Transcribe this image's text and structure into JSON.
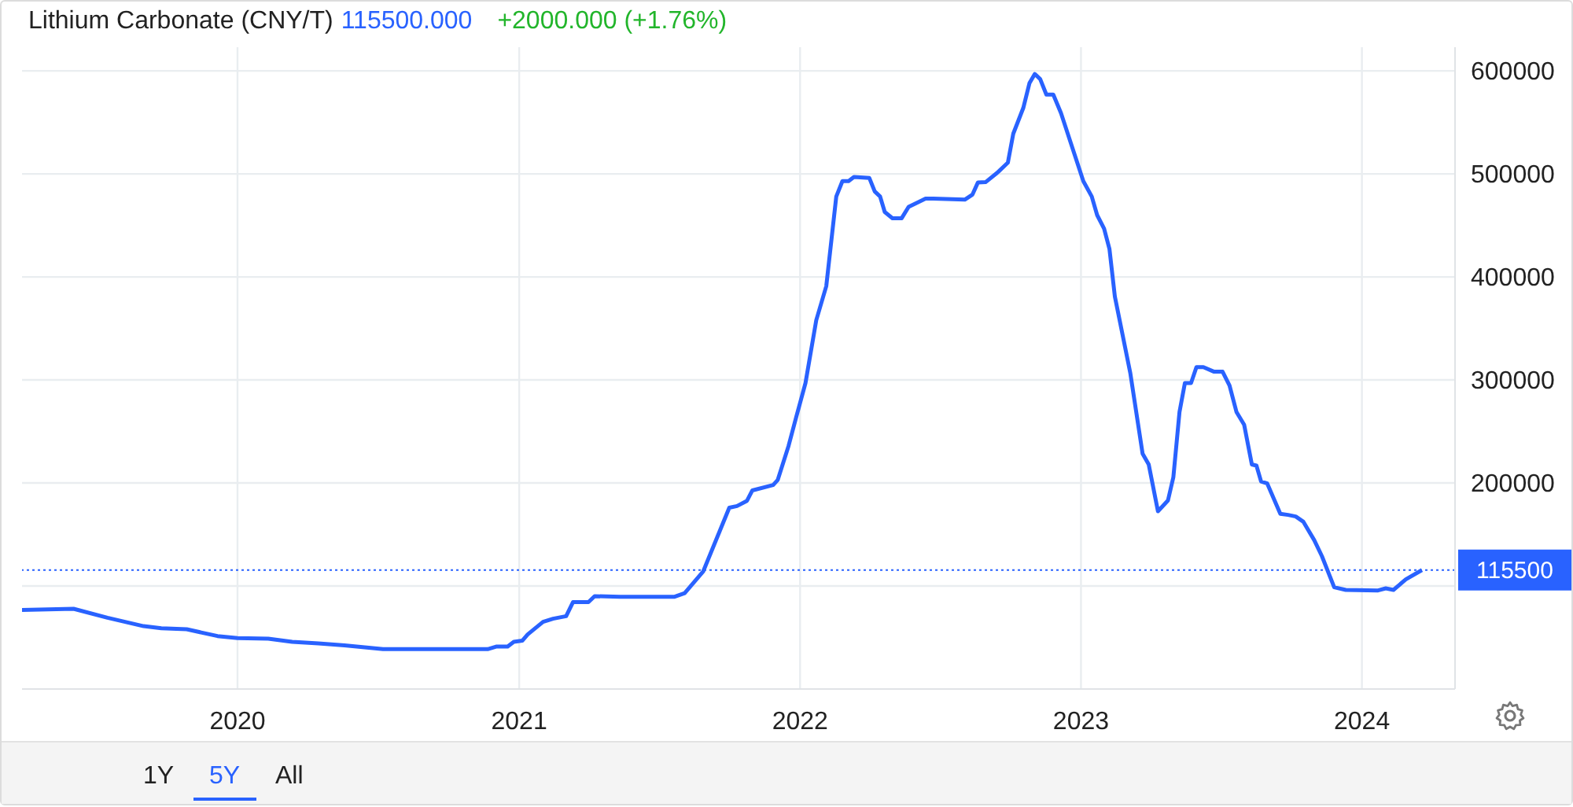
{
  "chart_data": {
    "type": "line",
    "title": "Lithium Carbonate (CNY/T)",
    "annotations": [
      "115500.000",
      "+2000.000 (+1.76%)",
      "1Y",
      "5Y",
      "All"
    ],
    "x": [
      "2019-03-27",
      "2019-06-02",
      "2019-07-16",
      "2019-09-01",
      "2019-09-24",
      "2019-10-27",
      "2019-12-06",
      "2020-01-01",
      "2020-02-10",
      "2020-03-12",
      "2020-04-15",
      "2020-05-19",
      "2020-07-08",
      "2020-11-21",
      "2020-12-02",
      "2020-12-17",
      "2020-12-25",
      "2021-01-05",
      "2021-01-12",
      "2021-02-01",
      "2021-02-14",
      "2021-03-03",
      "2021-03-12",
      "2021-04-01",
      "2021-04-09",
      "2021-05-12",
      "2021-07-22",
      "2021-08-04",
      "2021-08-28",
      "2021-10-01",
      "2021-10-11",
      "2021-10-24",
      "2021-10-31",
      "2021-11-27",
      "2021-12-03",
      "2021-12-17",
      "2021-12-27",
      "2022-01-08",
      "2022-01-22",
      "2022-02-04",
      "2022-02-17",
      "2022-02-25",
      "2022-03-05",
      "2022-03-12",
      "2022-04-01",
      "2022-04-08",
      "2022-04-15",
      "2022-04-21",
      "2022-05-01",
      "2022-05-13",
      "2022-05-22",
      "2022-06-13",
      "2022-06-23",
      "2022-08-03",
      "2022-08-13",
      "2022-08-20",
      "2022-08-30",
      "2022-09-14",
      "2022-09-28",
      "2022-10-05",
      "2022-10-18",
      "2022-10-26",
      "2022-11-02",
      "2022-11-09",
      "2022-11-17",
      "2022-11-26",
      "2022-12-06",
      "2023-01-04",
      "2023-01-15",
      "2023-01-22",
      "2023-01-31",
      "2023-02-07",
      "2023-02-14",
      "2023-03-06",
      "2023-03-22",
      "2023-03-30",
      "2023-04-11",
      "2023-04-24",
      "2023-05-01",
      "2023-05-09",
      "2023-05-16",
      "2023-05-24",
      "2023-05-31",
      "2023-06-09",
      "2023-06-23",
      "2023-07-04",
      "2023-07-13",
      "2023-07-22",
      "2023-08-01",
      "2023-08-11",
      "2023-08-17",
      "2023-08-23",
      "2023-08-31",
      "2023-09-17",
      "2023-09-27",
      "2023-10-07",
      "2023-10-17",
      "2023-10-31",
      "2023-11-10",
      "2023-11-26",
      "2023-12-11",
      "2024-01-22",
      "2024-02-01",
      "2024-02-11",
      "2024-02-27",
      "2024-03-19"
    ],
    "series": [
      {
        "color": "#2962ff",
        "values": [
          76800,
          77900,
          69200,
          61000,
          59000,
          58000,
          51400,
          49400,
          48900,
          45800,
          44300,
          42300,
          38700,
          38700,
          41200,
          41200,
          45800,
          46900,
          53000,
          65200,
          68200,
          70700,
          84400,
          84400,
          90100,
          89600,
          89600,
          93100,
          114000,
          176000,
          177600,
          182700,
          192800,
          198000,
          203000,
          236000,
          264000,
          297000,
          358000,
          391000,
          478000,
          493000,
          493000,
          497000,
          496000,
          483000,
          478000,
          463000,
          457000,
          457000,
          468000,
          476000,
          476000,
          475000,
          480000,
          491600,
          492000,
          501000,
          511000,
          539000,
          564000,
          588000,
          597000,
          592000,
          577000,
          577000,
          559000,
          493000,
          478000,
          460000,
          447000,
          427000,
          381000,
          307000,
          228500,
          218000,
          172500,
          183000,
          205600,
          269000,
          297000,
          297000,
          312500,
          312500,
          308000,
          308000,
          294600,
          269000,
          256500,
          218000,
          216800,
          201500,
          199500,
          170000,
          169000,
          167500,
          162300,
          144600,
          129000,
          98800,
          96200,
          95700,
          97700,
          96200,
          106400,
          115500
        ]
      }
    ],
    "xlim": [
      "2019-03-27",
      "2024-05-01"
    ],
    "xticks": [
      {
        "value": "2020-01-01",
        "label": "2020"
      },
      {
        "value": "2021-01-01",
        "label": "2021"
      },
      {
        "value": "2022-01-01",
        "label": "2022"
      },
      {
        "value": "2023-01-01",
        "label": "2023"
      },
      {
        "value": "2024-01-01",
        "label": "2024"
      }
    ],
    "ylim": [
      0,
      623000
    ],
    "yticks": [
      {
        "value": 100000,
        "label": null
      },
      200000,
      300000,
      400000,
      500000,
      600000
    ],
    "ref_lines": [
      {
        "axis": "y",
        "value": 115500,
        "label": "115500",
        "color": "#2962ff",
        "line_style": "dotted"
      }
    ],
    "grid": true,
    "marker": "none",
    "line_style": "solid"
  }
}
